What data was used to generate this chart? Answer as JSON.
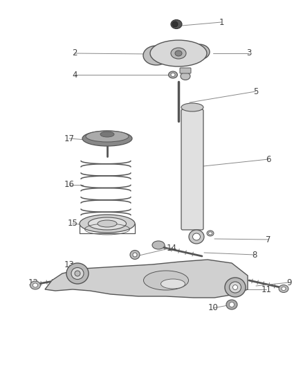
{
  "background_color": "#ffffff",
  "fig_width": 4.38,
  "fig_height": 5.33,
  "dpi": 100,
  "line_color": "#888888",
  "text_color": "#444444",
  "edge_color": "#555555",
  "label_fontsize": 8.5
}
